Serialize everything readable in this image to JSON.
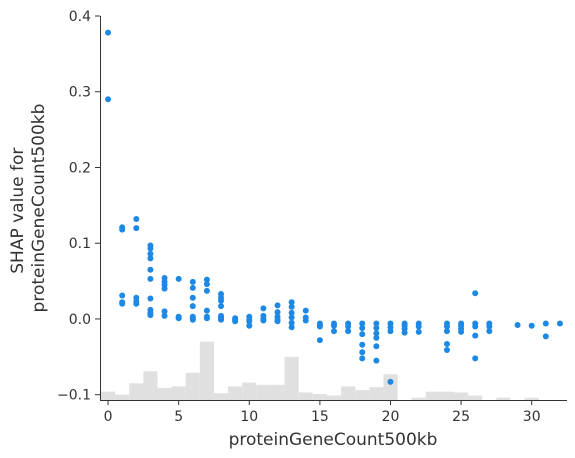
{
  "chart_data": {
    "type": "scatter",
    "xlabel": "proteinGeneCount500kb",
    "ylabel_lines": [
      "SHAP value for",
      "proteinGeneCount500kb"
    ],
    "xlim": [
      -0.5,
      32.5
    ],
    "ylim": [
      -0.107,
      0.4
    ],
    "xticks": [
      0,
      5,
      10,
      15,
      20,
      25,
      30
    ],
    "yticks": [
      -0.1,
      0.0,
      0.1,
      0.2,
      0.3,
      0.4
    ],
    "ytick_labels": [
      "−0.1",
      "0.0",
      "0.1",
      "0.2",
      "0.3",
      "0.4"
    ],
    "grid": false,
    "point_color": "#1E88E5",
    "histogram_color": "#E0E0E0",
    "histogram": {
      "bin_width": 1,
      "baseline": -0.107,
      "bins": [
        {
          "x": 0,
          "top": -0.096
        },
        {
          "x": 1,
          "top": -0.1
        },
        {
          "x": 2,
          "top": -0.085
        },
        {
          "x": 3,
          "top": -0.069
        },
        {
          "x": 4,
          "top": -0.091
        },
        {
          "x": 5,
          "top": -0.089
        },
        {
          "x": 6,
          "top": -0.071
        },
        {
          "x": 7,
          "top": -0.03
        },
        {
          "x": 8,
          "top": -0.098
        },
        {
          "x": 9,
          "top": -0.089
        },
        {
          "x": 10,
          "top": -0.084
        },
        {
          "x": 11,
          "top": -0.087
        },
        {
          "x": 12,
          "top": -0.087
        },
        {
          "x": 13,
          "top": -0.05
        },
        {
          "x": 14,
          "top": -0.097
        },
        {
          "x": 15,
          "top": -0.099
        },
        {
          "x": 16,
          "top": -0.101
        },
        {
          "x": 17,
          "top": -0.089
        },
        {
          "x": 18,
          "top": -0.094
        },
        {
          "x": 19,
          "top": -0.09
        },
        {
          "x": 20,
          "top": -0.073
        },
        {
          "x": 22,
          "top": -0.104
        },
        {
          "x": 23,
          "top": -0.096
        },
        {
          "x": 24,
          "top": -0.096
        },
        {
          "x": 25,
          "top": -0.097
        },
        {
          "x": 26,
          "top": -0.101
        },
        {
          "x": 28,
          "top": -0.104
        },
        {
          "x": 30,
          "top": -0.104
        }
      ]
    },
    "points": [
      [
        0,
        0.378
      ],
      [
        0,
        0.29
      ],
      [
        1,
        0.121
      ],
      [
        1,
        0.118
      ],
      [
        1,
        0.031
      ],
      [
        1,
        0.022
      ],
      [
        1,
        0.02
      ],
      [
        2,
        0.132
      ],
      [
        2,
        0.12
      ],
      [
        2,
        0.028
      ],
      [
        2,
        0.023
      ],
      [
        2,
        0.02
      ],
      [
        3,
        0.097
      ],
      [
        3,
        0.093
      ],
      [
        3,
        0.086
      ],
      [
        3,
        0.08
      ],
      [
        3,
        0.065
      ],
      [
        3,
        0.053
      ],
      [
        3,
        0.027
      ],
      [
        3,
        0.012
      ],
      [
        3,
        0.008
      ],
      [
        3,
        0.005
      ],
      [
        4,
        0.054
      ],
      [
        4,
        0.049
      ],
      [
        4,
        0.045
      ],
      [
        4,
        0.04
      ],
      [
        4,
        0.01
      ],
      [
        4,
        0.004
      ],
      [
        5,
        0.053
      ],
      [
        5,
        0.003
      ],
      [
        5,
        0.002
      ],
      [
        5,
        0.001
      ],
      [
        6,
        0.049
      ],
      [
        6,
        0.041
      ],
      [
        6,
        0.028
      ],
      [
        6,
        0.017
      ],
      [
        6,
        0.003
      ],
      [
        6,
        0.001
      ],
      [
        6,
        -0.001
      ],
      [
        7,
        0.052
      ],
      [
        7,
        0.046
      ],
      [
        7,
        0.037
      ],
      [
        7,
        0.011
      ],
      [
        7,
        0.003
      ],
      [
        7,
        0.001
      ],
      [
        8,
        0.033
      ],
      [
        8,
        0.028
      ],
      [
        8,
        0.024
      ],
      [
        8,
        0.017
      ],
      [
        8,
        0.004
      ],
      [
        8,
        0.002
      ],
      [
        8,
        0.0
      ],
      [
        8,
        -0.001
      ],
      [
        9,
        0.001
      ],
      [
        9,
        -0.001
      ],
      [
        9,
        -0.003
      ],
      [
        10,
        0.003
      ],
      [
        10,
        -0.001
      ],
      [
        10,
        -0.003
      ],
      [
        10,
        -0.009
      ],
      [
        11,
        0.014
      ],
      [
        11,
        0.004
      ],
      [
        11,
        0.0
      ],
      [
        11,
        -0.002
      ],
      [
        12,
        0.018
      ],
      [
        12,
        0.009
      ],
      [
        12,
        0.003
      ],
      [
        12,
        -0.001
      ],
      [
        12,
        -0.003
      ],
      [
        13,
        0.022
      ],
      [
        13,
        0.016
      ],
      [
        13,
        0.008
      ],
      [
        13,
        0.002
      ],
      [
        13,
        -0.005
      ],
      [
        13,
        -0.011
      ],
      [
        14,
        0.011
      ],
      [
        14,
        0.002
      ],
      [
        14,
        -0.002
      ],
      [
        15,
        -0.006
      ],
      [
        15,
        -0.008
      ],
      [
        15,
        -0.01
      ],
      [
        15,
        -0.028
      ],
      [
        16,
        -0.006
      ],
      [
        16,
        -0.009
      ],
      [
        16,
        -0.016
      ],
      [
        17,
        -0.006
      ],
      [
        17,
        -0.01
      ],
      [
        17,
        -0.016
      ],
      [
        18,
        -0.006
      ],
      [
        18,
        -0.012
      ],
      [
        18,
        -0.02
      ],
      [
        18,
        -0.034
      ],
      [
        18,
        -0.044
      ],
      [
        18,
        -0.052
      ],
      [
        19,
        -0.006
      ],
      [
        19,
        -0.012
      ],
      [
        19,
        -0.019
      ],
      [
        19,
        -0.025
      ],
      [
        19,
        -0.036
      ],
      [
        19,
        -0.055
      ],
      [
        20,
        -0.006
      ],
      [
        20,
        -0.011
      ],
      [
        20,
        -0.016
      ],
      [
        20,
        -0.083
      ],
      [
        21,
        -0.006
      ],
      [
        21,
        -0.009
      ],
      [
        21,
        -0.013
      ],
      [
        21,
        -0.018
      ],
      [
        22,
        -0.006
      ],
      [
        22,
        -0.01
      ],
      [
        22,
        -0.017
      ],
      [
        24,
        -0.006
      ],
      [
        24,
        -0.01
      ],
      [
        24,
        -0.016
      ],
      [
        24,
        -0.033
      ],
      [
        24,
        -0.041
      ],
      [
        25,
        -0.006
      ],
      [
        25,
        -0.009
      ],
      [
        25,
        -0.013
      ],
      [
        25,
        -0.017
      ],
      [
        26,
        0.034
      ],
      [
        26,
        -0.006
      ],
      [
        26,
        -0.01
      ],
      [
        26,
        -0.022
      ],
      [
        26,
        -0.052
      ],
      [
        27,
        -0.006
      ],
      [
        27,
        -0.01
      ],
      [
        27,
        -0.016
      ],
      [
        29,
        -0.008
      ],
      [
        30,
        -0.009
      ],
      [
        31,
        -0.006
      ],
      [
        31,
        -0.023
      ],
      [
        32,
        -0.006
      ]
    ]
  }
}
